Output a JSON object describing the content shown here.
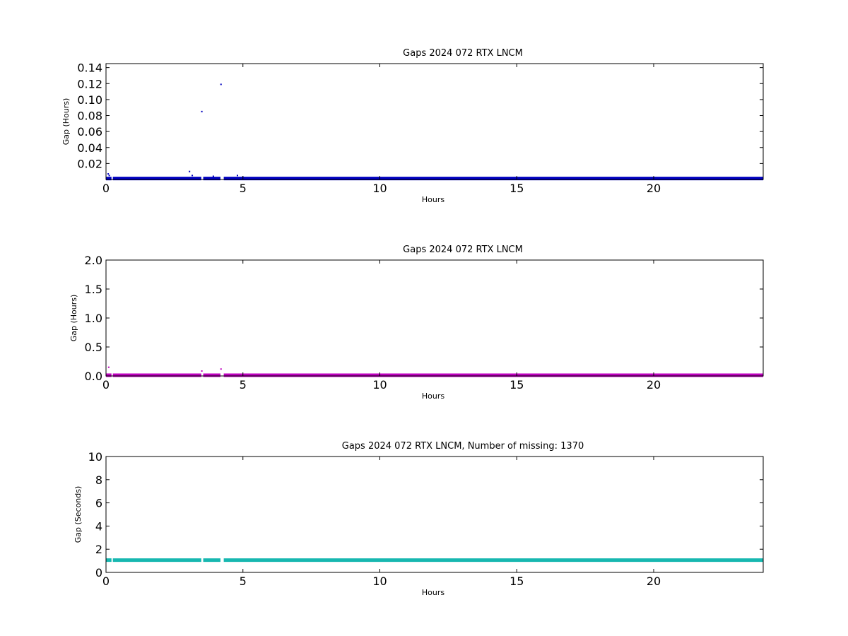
{
  "chart_data": [
    {
      "type": "scatter",
      "title": "Gaps 2024 072 RTX  LNCM",
      "xlabel": "Hours",
      "ylabel": "Gap (Hours)",
      "xlim": [
        0,
        24
      ],
      "ylim": [
        0,
        0.145
      ],
      "xticks": [
        0,
        5,
        10,
        15,
        20
      ],
      "xtick_labels": [
        "0",
        "5",
        "10",
        "15",
        "20"
      ],
      "yticks": [
        0.02,
        0.04,
        0.06,
        0.08,
        0.1,
        0.12,
        0.14
      ],
      "ytick_labels": [
        "0.02",
        "0.04",
        "0.06",
        "0.08",
        "0.10",
        "0.12",
        "0.14"
      ],
      "color": "#0000bf",
      "baseline": {
        "y": 0.0003,
        "segments": [
          [
            0,
            0.2
          ],
          [
            0.25,
            3.48
          ],
          [
            3.55,
            4.18
          ],
          [
            4.3,
            24
          ]
        ]
      },
      "points": [
        {
          "x": 0.08,
          "y": 0.007
        },
        {
          "x": 0.12,
          "y": 0.005
        },
        {
          "x": 3.05,
          "y": 0.01
        },
        {
          "x": 3.15,
          "y": 0.005
        },
        {
          "x": 3.5,
          "y": 0.085
        },
        {
          "x": 3.92,
          "y": 0.004
        },
        {
          "x": 4.2,
          "y": 0.119
        },
        {
          "x": 4.8,
          "y": 0.005
        },
        {
          "x": 5.0,
          "y": 0.003
        }
      ]
    },
    {
      "type": "scatter",
      "title": "Gaps 2024 072 RTX  LNCM",
      "xlabel": "Hours",
      "ylabel": "Gap (Hours)",
      "xlim": [
        0,
        24
      ],
      "ylim": [
        0,
        2.0
      ],
      "xticks": [
        0,
        5,
        10,
        15,
        20
      ],
      "xtick_labels": [
        "0",
        "5",
        "10",
        "15",
        "20"
      ],
      "yticks": [
        0,
        0.5,
        1.0,
        1.5,
        2.0
      ],
      "ytick_labels": [
        "0.0",
        "0.5",
        "1.0",
        "1.5",
        "2.0"
      ],
      "color": "#bf00bf",
      "baseline": {
        "y": 0.0003,
        "segments": [
          [
            0,
            0.2
          ],
          [
            0.25,
            3.48
          ],
          [
            3.55,
            4.18
          ],
          [
            4.3,
            24
          ]
        ]
      },
      "points": [
        {
          "x": 0.1,
          "y": 0.15
        },
        {
          "x": 3.5,
          "y": 0.085
        },
        {
          "x": 4.2,
          "y": 0.119
        }
      ]
    },
    {
      "type": "scatter",
      "title": "Gaps 2024 072 RTX  LNCM, Number of missing: 1370",
      "xlabel": "Hours",
      "ylabel": "Gap (Seconds)",
      "xlim": [
        0,
        24
      ],
      "ylim": [
        0,
        10
      ],
      "xticks": [
        0,
        5,
        10,
        15,
        20
      ],
      "xtick_labels": [
        "0",
        "5",
        "10",
        "15",
        "20"
      ],
      "yticks": [
        0,
        2,
        4,
        6,
        8,
        10
      ],
      "ytick_labels": [
        "0",
        "2",
        "4",
        "6",
        "8",
        "10"
      ],
      "color": "#17b7b0",
      "baseline": {
        "y": 1.0,
        "segments": [
          [
            0,
            0.2
          ],
          [
            0.25,
            3.48
          ],
          [
            3.55,
            4.18
          ],
          [
            4.3,
            24
          ]
        ]
      },
      "points": []
    }
  ]
}
